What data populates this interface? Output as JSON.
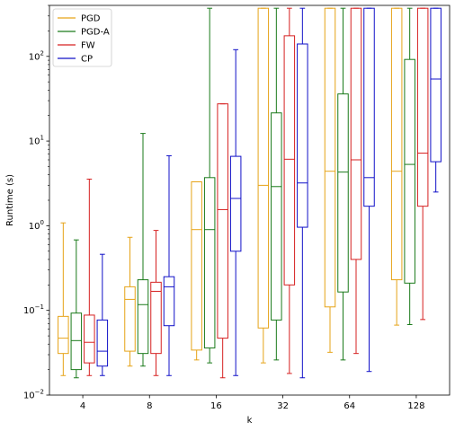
{
  "chart_data": {
    "type": "box",
    "xlabel": "k",
    "ylabel": "Runtime (s)",
    "yscale": "log",
    "ylim": [
      0.01,
      400
    ],
    "categories": [
      "4",
      "8",
      "16",
      "32",
      "64",
      "128"
    ],
    "y_ticks": [
      {
        "value": 0.01,
        "label": "10",
        "exp": "−2"
      },
      {
        "value": 0.1,
        "label": "10",
        "exp": "−1"
      },
      {
        "value": 1,
        "label": "10",
        "exp": "0"
      },
      {
        "value": 10,
        "label": "10",
        "exp": "1"
      },
      {
        "value": 100,
        "label": "10",
        "exp": "2"
      }
    ],
    "legend": {
      "placement": "top-left"
    },
    "series": [
      {
        "name": "PGD",
        "color": "#e6a317",
        "boxes": [
          {
            "whislo": 0.017,
            "q1": 0.031,
            "med": 0.047,
            "q3": 0.085,
            "whishi": 1.08
          },
          {
            "whislo": 0.022,
            "q1": 0.033,
            "med": 0.135,
            "q3": 0.19,
            "whishi": 0.73
          },
          {
            "whislo": 0.026,
            "q1": 0.034,
            "med": 0.9,
            "q3": 3.3,
            "whishi": 3.3
          },
          {
            "whislo": 0.024,
            "q1": 0.062,
            "med": 3.0,
            "q3": 370,
            "whishi": 370
          },
          {
            "whislo": 0.032,
            "q1": 0.11,
            "med": 4.4,
            "q3": 370,
            "whishi": 370
          },
          {
            "whislo": 0.067,
            "q1": 0.23,
            "med": 4.4,
            "q3": 370,
            "whishi": 370
          }
        ]
      },
      {
        "name": "PGD-A",
        "color": "#1a7a1a",
        "boxes": [
          {
            "whislo": 0.016,
            "q1": 0.02,
            "med": 0.044,
            "q3": 0.093,
            "whishi": 0.68
          },
          {
            "whislo": 0.022,
            "q1": 0.031,
            "med": 0.117,
            "q3": 0.23,
            "whishi": 12.3
          },
          {
            "whislo": 0.024,
            "q1": 0.036,
            "med": 0.9,
            "q3": 3.7,
            "whishi": 370
          },
          {
            "whislo": 0.026,
            "q1": 0.077,
            "med": 2.9,
            "q3": 21.5,
            "whishi": 370
          },
          {
            "whislo": 0.026,
            "q1": 0.165,
            "med": 4.3,
            "q3": 36,
            "whishi": 370
          },
          {
            "whislo": 0.068,
            "q1": 0.21,
            "med": 5.3,
            "q3": 92,
            "whishi": 370
          }
        ]
      },
      {
        "name": "FW",
        "color": "#d62020",
        "boxes": [
          {
            "whislo": 0.017,
            "q1": 0.024,
            "med": 0.042,
            "q3": 0.088,
            "whishi": 3.55
          },
          {
            "whislo": 0.017,
            "q1": 0.031,
            "med": 0.168,
            "q3": 0.215,
            "whishi": 0.88
          },
          {
            "whislo": 0.016,
            "q1": 0.047,
            "med": 1.55,
            "q3": 27.5,
            "whishi": 27.5
          },
          {
            "whislo": 0.018,
            "q1": 0.2,
            "med": 6.1,
            "q3": 175,
            "whishi": 370
          },
          {
            "whislo": 0.031,
            "q1": 0.4,
            "med": 6.0,
            "q3": 370,
            "whishi": 370
          },
          {
            "whislo": 0.078,
            "q1": 1.7,
            "med": 7.2,
            "q3": 370,
            "whishi": 370
          }
        ]
      },
      {
        "name": "CP",
        "color": "#1010c8",
        "boxes": [
          {
            "whislo": 0.017,
            "q1": 0.022,
            "med": 0.033,
            "q3": 0.077,
            "whishi": 0.46
          },
          {
            "whislo": 0.017,
            "q1": 0.066,
            "med": 0.19,
            "q3": 0.25,
            "whishi": 6.7
          },
          {
            "whislo": 0.017,
            "q1": 0.5,
            "med": 2.1,
            "q3": 6.6,
            "whishi": 120
          },
          {
            "whislo": 0.016,
            "q1": 0.96,
            "med": 3.2,
            "q3": 140,
            "whishi": 370
          },
          {
            "whislo": 0.019,
            "q1": 1.7,
            "med": 3.7,
            "q3": 370,
            "whishi": 370
          },
          {
            "whislo": 2.5,
            "q1": 5.7,
            "med": 54,
            "q3": 370,
            "whishi": 370
          }
        ]
      }
    ]
  }
}
